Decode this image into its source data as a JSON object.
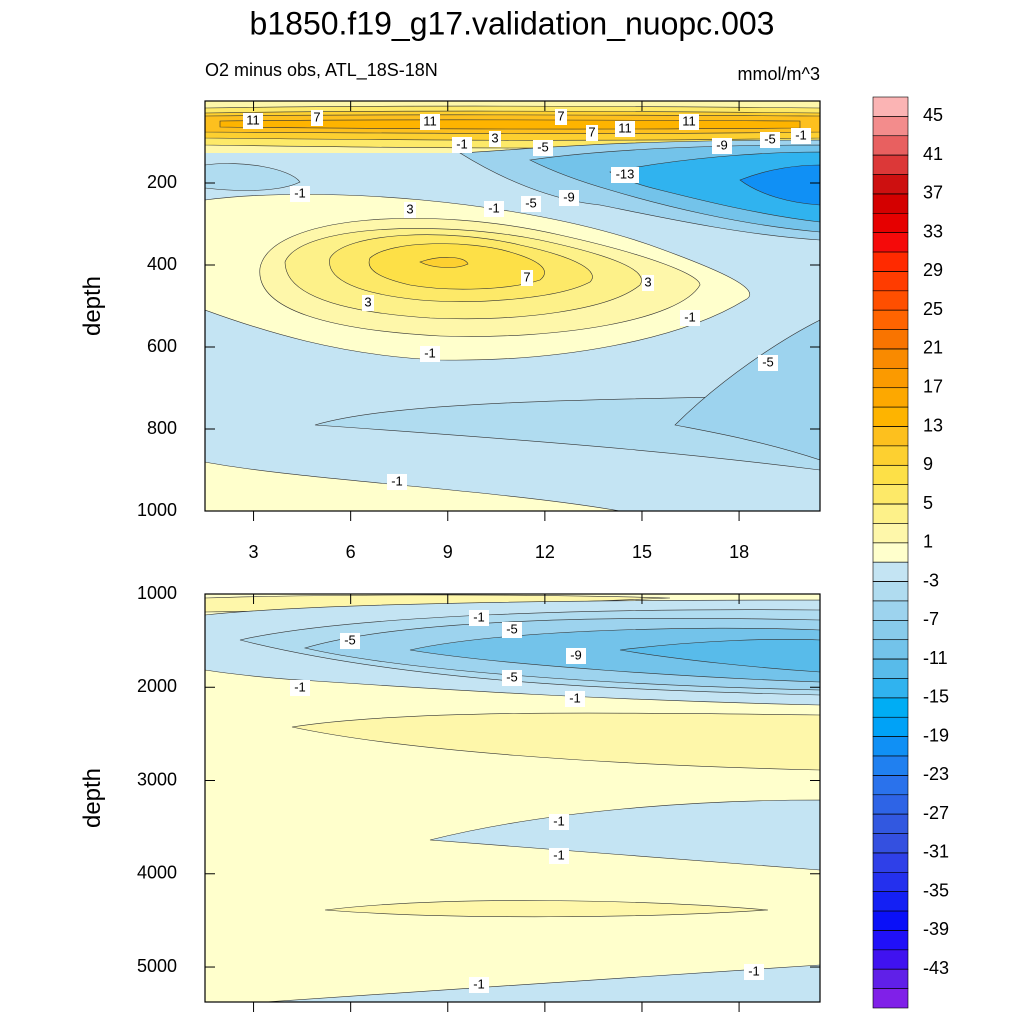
{
  "chart_data": {
    "type": "contour",
    "title": "b1850.f19_g17.validation_nuopc.003",
    "subtitle": "O2 minus obs, ATL_18S-18N",
    "units": "mmol/m^3",
    "panels": [
      {
        "ylabel": "depth",
        "xlim": [
          1.5,
          20.5
        ],
        "ylim": [
          0,
          1000
        ],
        "xticks": [
          3,
          6,
          9,
          12,
          15,
          18
        ],
        "yticks": [
          200,
          400,
          600,
          800,
          1000
        ],
        "contour_labels": [
          11,
          7,
          11,
          7,
          7,
          11,
          11,
          -1,
          3,
          -5,
          -9,
          -5,
          -1,
          -13,
          -1,
          3,
          -1,
          -5,
          -9,
          7,
          3,
          3,
          -1,
          -1,
          -5,
          -1
        ]
      },
      {
        "ylabel": "depth",
        "xlim": [
          1.5,
          20.5
        ],
        "ylim": [
          1000,
          5375
        ],
        "yticks": [
          1000,
          2000,
          3000,
          4000,
          5000
        ],
        "contour_labels": [
          -1,
          -5,
          -5,
          -9,
          -5,
          -1,
          -1,
          -1,
          -1,
          -1,
          -1
        ]
      }
    ],
    "colorbar": {
      "ylim": [
        -47,
        47
      ],
      "ticks": [
        45,
        41,
        37,
        33,
        29,
        25,
        21,
        17,
        13,
        9,
        5,
        1,
        -3,
        -7,
        -11,
        -15,
        -19,
        -23,
        -27,
        -31,
        -35,
        -39,
        -43
      ],
      "colors": [
        "#fbb4b4",
        "#f38c8c",
        "#e86060",
        "#dc3838",
        "#cd1010",
        "#d40000",
        "#e60000",
        "#f50a0a",
        "#ff2a00",
        "#ff3c00",
        "#ff4f00",
        "#ff6400",
        "#f97400",
        "#f98a00",
        "#fb9a00",
        "#fda800",
        "#feb400",
        "#fdc01e",
        "#fdd030",
        "#fde047",
        "#fde968",
        "#fdf189",
        "#fef7aa",
        "#ffffcc",
        "#c4e4f3",
        "#b0dcf0",
        "#9dd3ee",
        "#88cbeb",
        "#73c3ea",
        "#58bbea",
        "#30b3ef",
        "#00adf4",
        "#00a2f7",
        "#1090f5",
        "#2080f0",
        "#2a72ec",
        "#2e64e6",
        "#3258e0",
        "#3450e0",
        "#2f40e8",
        "#2430ee",
        "#1420f4",
        "#0a10f8",
        "#2010f8",
        "#4012f0",
        "#6020e8",
        "#8020e8"
      ]
    }
  }
}
